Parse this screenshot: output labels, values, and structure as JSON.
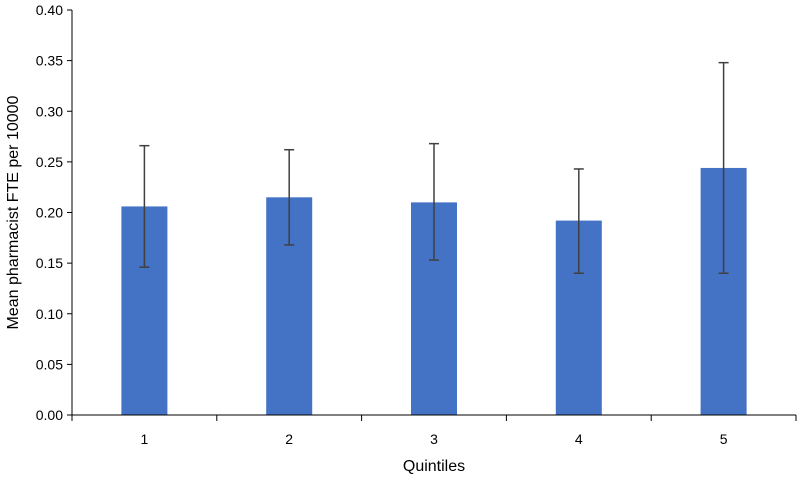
{
  "chart_data": {
    "type": "bar",
    "title": "",
    "xlabel": "Quintiles",
    "ylabel": "Mean pharmacist FTE per 10000",
    "categories": [
      "1",
      "2",
      "3",
      "4",
      "5"
    ],
    "values": [
      0.206,
      0.215,
      0.21,
      0.192,
      0.244
    ],
    "error_low": [
      0.146,
      0.168,
      0.153,
      0.14,
      0.14
    ],
    "error_high": [
      0.266,
      0.262,
      0.268,
      0.243,
      0.348
    ],
    "ylim": [
      0,
      0.4
    ],
    "yticks": [
      "0.00",
      "0.05",
      "0.10",
      "0.15",
      "0.20",
      "0.25",
      "0.30",
      "0.35",
      "0.40"
    ],
    "grid": false,
    "legend": "none",
    "colors": {
      "bar": "#4472C4",
      "error_bar": "#404040",
      "axis": "#000000"
    }
  }
}
